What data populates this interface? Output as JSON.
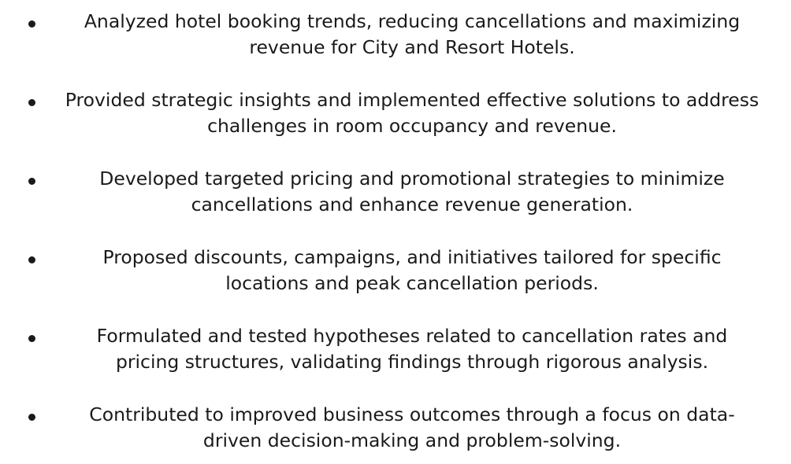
{
  "bullets": [
    {
      "line1": "Analyzed hotel booking trends, reducing cancellations and maximizing",
      "line2": "revenue for City and Resort Hotels."
    },
    {
      "line1": "Provided strategic insights and implemented effective solutions to address",
      "line2": "challenges in room occupancy and revenue."
    },
    {
      "line1": "Developed targeted pricing and promotional strategies to minimize",
      "line2": "cancellations and enhance revenue generation."
    },
    {
      "line1": "Proposed discounts, campaigns, and initiatives tailored for specific",
      "line2": "locations and peak cancellation periods."
    },
    {
      "line1": "Formulated and tested hypotheses related to cancellation rates and",
      "line2": "pricing structures, validating findings through rigorous analysis."
    },
    {
      "line1": "Contributed to improved business outcomes through a focus on data-",
      "line2": "driven decision-making and problem-solving."
    }
  ]
}
